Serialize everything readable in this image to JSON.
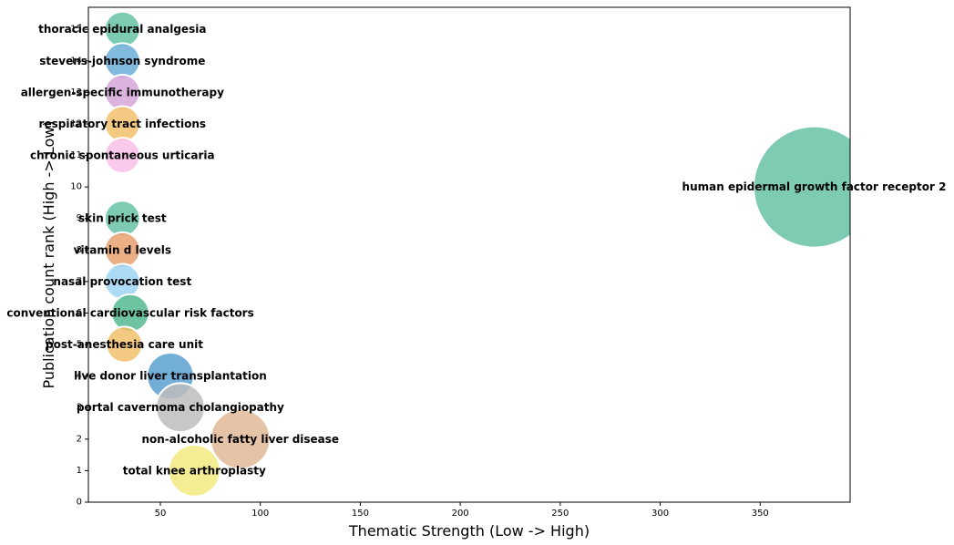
{
  "chart_data": {
    "type": "scatter",
    "title": "",
    "xlabel": "Thematic Strength (Low -> High)",
    "ylabel": "Publication count rank (High -> Low)",
    "xlim": [
      14,
      395
    ],
    "ylim": [
      0,
      15.7
    ],
    "x_ticks": [
      50,
      100,
      150,
      200,
      250,
      300,
      350
    ],
    "y_ticks": [
      0,
      1,
      2,
      3,
      4,
      5,
      6,
      7,
      8,
      9,
      10,
      11,
      12,
      13,
      14,
      15
    ],
    "grid": false,
    "legend": "none",
    "points": [
      {
        "label": "thoracic epidural analgesia",
        "x": 31,
        "y": 15,
        "size": 31,
        "color": "#66c2a5"
      },
      {
        "label": "stevens-johnson syndrome",
        "x": 31,
        "y": 14,
        "size": 31,
        "color": "#6baed6"
      },
      {
        "label": "allergen-specific immunotherapy",
        "x": 31,
        "y": 13,
        "size": 31,
        "color": "#d6a4d8"
      },
      {
        "label": "respiratory tract infections",
        "x": 31,
        "y": 12,
        "size": 31,
        "color": "#f2c06b"
      },
      {
        "label": "chronic spontaneous urticaria",
        "x": 31,
        "y": 11,
        "size": 31,
        "color": "#f9c0e8"
      },
      {
        "label": "human epidermal growth factor receptor 2",
        "x": 377,
        "y": 10,
        "size": 377,
        "color": "#66c2a5"
      },
      {
        "label": "skin prick test",
        "x": 31,
        "y": 9,
        "size": 31,
        "color": "#66c2a5"
      },
      {
        "label": "vitamin d levels",
        "x": 31,
        "y": 8,
        "size": 31,
        "color": "#e8a070"
      },
      {
        "label": "nasal provocation test",
        "x": 31,
        "y": 7,
        "size": 31,
        "color": "#9fd3f3"
      },
      {
        "label": "conventional cardiovascular risk factors",
        "x": 35,
        "y": 6,
        "size": 35,
        "color": "#55b890"
      },
      {
        "label": "post-anesthesia care unit",
        "x": 32,
        "y": 5,
        "size": 32,
        "color": "#f2c06b"
      },
      {
        "label": "live donor liver transplantation",
        "x": 55,
        "y": 4,
        "size": 55,
        "color": "#5aa0d0"
      },
      {
        "label": "portal cavernoma cholangiopathy",
        "x": 60,
        "y": 3,
        "size": 60,
        "color": "#bdbdbd"
      },
      {
        "label": "non-alcoholic fatty liver disease",
        "x": 90,
        "y": 2,
        "size": 90,
        "color": "#e0b898"
      },
      {
        "label": "total knee arthroplasty",
        "x": 67,
        "y": 1,
        "size": 67,
        "color": "#f2ea80"
      }
    ]
  }
}
